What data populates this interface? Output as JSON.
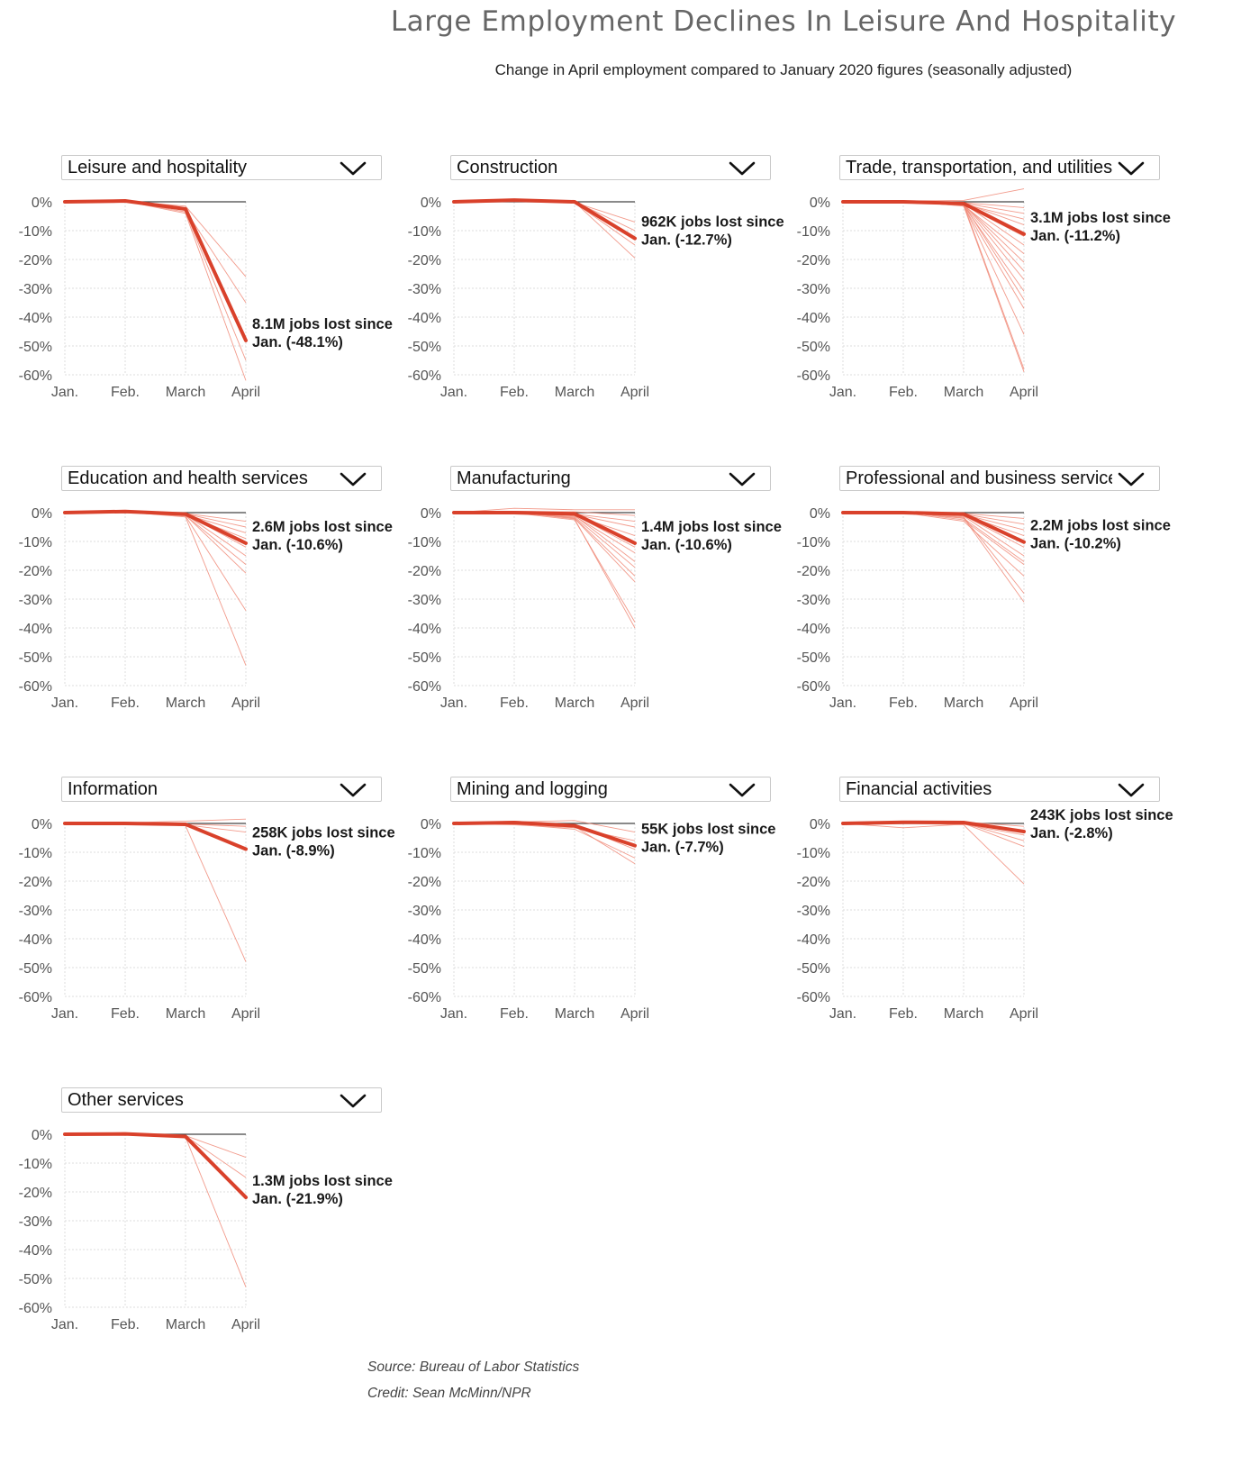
{
  "title": "Large Employment Declines In Leisure And Hospitality",
  "subtitle": "Change in April employment compared to January 2020 figures (seasonally adjusted)",
  "source": "Source: Bureau of Labor Statistics",
  "credit": "Credit: Sean McMinn/NPR",
  "colors": {
    "highlight": "#d9412b",
    "background_lines": "#f08a78",
    "zero_line": "#444444",
    "grid": "#dddddd"
  },
  "icons": {
    "dropdown": "chevron-down-icon"
  },
  "chart_data": [
    {
      "type": "line",
      "dropdown_label": "Leisure and hospitality",
      "x": [
        "Jan.",
        "Feb.",
        "March",
        "April"
      ],
      "y_ticks": [
        "0%",
        "-10%",
        "-20%",
        "-30%",
        "-40%",
        "-50%",
        "-60%"
      ],
      "ylim": [
        -60,
        0
      ],
      "highlight": {
        "values": [
          0,
          0.3,
          -2.5,
          -48.1
        ]
      },
      "annotation": [
        "8.1M jobs lost since",
        "Jan. (-48.1%)"
      ],
      "background_series": [
        [
          0,
          0.2,
          -1.5,
          -26
        ],
        [
          0,
          0.4,
          -3,
          -35
        ],
        [
          0,
          0.3,
          -2.8,
          -48
        ],
        [
          0,
          0.1,
          -3.5,
          -55
        ],
        [
          0,
          0.2,
          -4,
          -62
        ]
      ]
    },
    {
      "type": "line",
      "dropdown_label": "Construction",
      "x": [
        "Jan.",
        "Feb.",
        "March",
        "April"
      ],
      "y_ticks": [
        "0%",
        "-10%",
        "-20%",
        "-30%",
        "-40%",
        "-50%",
        "-60%"
      ],
      "ylim": [
        -60,
        0
      ],
      "highlight": {
        "values": [
          0,
          0.6,
          0,
          -12.7
        ]
      },
      "annotation": [
        "962K jobs lost since",
        "Jan. (-12.7%)"
      ],
      "background_series": [
        [
          0,
          0.4,
          -0.2,
          -7
        ],
        [
          0,
          0.5,
          0.1,
          -10
        ],
        [
          0,
          0.7,
          -0.3,
          -15
        ],
        [
          0,
          0.3,
          -0.1,
          -19.5
        ]
      ]
    },
    {
      "type": "line",
      "dropdown_label": "Trade, transportation, and utilities",
      "x": [
        "Jan.",
        "Feb.",
        "March",
        "April"
      ],
      "y_ticks": [
        "0%",
        "-10%",
        "-20%",
        "-30%",
        "-40%",
        "-50%",
        "-60%"
      ],
      "ylim": [
        -60,
        0
      ],
      "highlight": {
        "values": [
          0,
          0,
          -0.6,
          -11.2
        ]
      },
      "annotation": [
        "3.1M jobs lost since",
        "Jan. (-11.2%)"
      ],
      "background_series": [
        [
          0,
          0.3,
          0.5,
          4.5
        ],
        [
          0,
          0.2,
          -0.3,
          -2
        ],
        [
          0,
          -0.2,
          -0.5,
          -4
        ],
        [
          0,
          0.1,
          -0.8,
          -6
        ],
        [
          0,
          0.3,
          -0.4,
          -8
        ],
        [
          0,
          -0.3,
          -1,
          -12
        ],
        [
          0,
          0.2,
          -0.6,
          -15
        ],
        [
          0,
          0,
          -1.2,
          -18
        ],
        [
          0,
          0.1,
          -0.9,
          -21
        ],
        [
          0,
          -0.2,
          -0.7,
          -24
        ],
        [
          0,
          0.2,
          -1,
          -27
        ],
        [
          0,
          0,
          -1.3,
          -31
        ],
        [
          0,
          0.1,
          -0.8,
          -34
        ],
        [
          0,
          0.3,
          -1.5,
          -37
        ],
        [
          0,
          -0.1,
          -1.1,
          -46
        ],
        [
          0,
          0.2,
          -0.9,
          -58
        ],
        [
          0,
          0.1,
          -1.4,
          -59
        ]
      ]
    },
    {
      "type": "line",
      "dropdown_label": "Education and health services",
      "x": [
        "Jan.",
        "Feb.",
        "March",
        "April"
      ],
      "y_ticks": [
        "0%",
        "-10%",
        "-20%",
        "-30%",
        "-40%",
        "-50%",
        "-60%"
      ],
      "ylim": [
        -60,
        0
      ],
      "highlight": {
        "values": [
          0,
          0.4,
          -0.5,
          -10.6
        ]
      },
      "annotation": [
        "2.6M jobs lost since",
        "Jan. (-10.6%)"
      ],
      "background_series": [
        [
          0,
          0.2,
          -0.3,
          -3
        ],
        [
          0,
          0.3,
          -0.4,
          -5
        ],
        [
          0,
          0.2,
          -0.6,
          -7
        ],
        [
          0,
          0.4,
          -0.8,
          -9
        ],
        [
          0,
          0.1,
          -0.5,
          -12
        ],
        [
          0,
          0.3,
          -0.7,
          -15
        ],
        [
          0,
          0.2,
          -1,
          -18
        ],
        [
          0,
          0.3,
          -0.9,
          -21
        ],
        [
          0,
          0.1,
          -1.2,
          -34
        ],
        [
          0,
          0.2,
          -1.5,
          -53
        ]
      ]
    },
    {
      "type": "line",
      "dropdown_label": "Manufacturing",
      "x": [
        "Jan.",
        "Feb.",
        "March",
        "April"
      ],
      "y_ticks": [
        "0%",
        "-10%",
        "-20%",
        "-30%",
        "-40%",
        "-50%",
        "-60%"
      ],
      "ylim": [
        -60,
        0
      ],
      "highlight": {
        "values": [
          0,
          0,
          -0.4,
          -10.6
        ]
      },
      "annotation": [
        "1.4M jobs lost since",
        "Jan. (-10.6%)"
      ],
      "background_series": [
        [
          0,
          1.5,
          1,
          1
        ],
        [
          0,
          0.5,
          0.3,
          -1
        ],
        [
          0,
          -0.3,
          -0.5,
          -3
        ],
        [
          0,
          0.2,
          -0.6,
          -5
        ],
        [
          0,
          -0.5,
          -1,
          -8
        ],
        [
          0,
          0.3,
          -0.8,
          -12
        ],
        [
          0,
          0,
          -1.2,
          -14
        ],
        [
          0,
          0.4,
          -1,
          -17
        ],
        [
          0,
          -0.2,
          -1.5,
          -19
        ],
        [
          0,
          0.1,
          -1.8,
          -22
        ],
        [
          0,
          0.3,
          -2,
          -24
        ],
        [
          0,
          -0.1,
          -2.5,
          -38
        ],
        [
          0,
          0.2,
          -2.2,
          -40
        ]
      ]
    },
    {
      "type": "line",
      "dropdown_label": "Professional and business services",
      "x": [
        "Jan.",
        "Feb.",
        "March",
        "April"
      ],
      "y_ticks": [
        "0%",
        "-10%",
        "-20%",
        "-30%",
        "-40%",
        "-50%",
        "-60%"
      ],
      "ylim": [
        -60,
        0
      ],
      "highlight": {
        "values": [
          0,
          0,
          -0.5,
          -10.2
        ]
      },
      "annotation": [
        "2.2M jobs lost since",
        "Jan. (-10.2%)"
      ],
      "background_series": [
        [
          0,
          0.2,
          -0.3,
          -2
        ],
        [
          0,
          0.1,
          -0.5,
          -4
        ],
        [
          0,
          0.3,
          -0.6,
          -6
        ],
        [
          0,
          0.2,
          -0.8,
          -8
        ],
        [
          0,
          0,
          -1,
          -12
        ],
        [
          0,
          0.2,
          -1.2,
          -15
        ],
        [
          0,
          0.1,
          -2,
          -17
        ],
        [
          0,
          0.3,
          -2.5,
          -18
        ],
        [
          0,
          0,
          -3,
          -22
        ],
        [
          0,
          0.2,
          -1.5,
          -28
        ],
        [
          0,
          0.1,
          -1.8,
          -31
        ]
      ]
    },
    {
      "type": "line",
      "dropdown_label": "Information",
      "x": [
        "Jan.",
        "Feb.",
        "March",
        "April"
      ],
      "y_ticks": [
        "0%",
        "-10%",
        "-20%",
        "-30%",
        "-40%",
        "-50%",
        "-60%"
      ],
      "ylim": [
        -60,
        0
      ],
      "highlight": {
        "values": [
          0,
          0,
          -0.3,
          -8.9
        ]
      },
      "annotation": [
        "258K jobs lost since",
        "Jan. (-8.9%)"
      ],
      "background_series": [
        [
          0,
          0.2,
          0.8,
          1.5
        ],
        [
          0,
          0.1,
          -0.2,
          -1
        ],
        [
          0,
          -0.1,
          -0.5,
          -3
        ],
        [
          0,
          0.1,
          -0.8,
          -48
        ]
      ]
    },
    {
      "type": "line",
      "dropdown_label": "Mining and logging",
      "x": [
        "Jan.",
        "Feb.",
        "March",
        "April"
      ],
      "y_ticks": [
        "0%",
        "-10%",
        "-20%",
        "-30%",
        "-40%",
        "-50%",
        "-60%"
      ],
      "ylim": [
        -60,
        0
      ],
      "highlight": {
        "values": [
          0,
          0.3,
          -0.8,
          -7.7
        ]
      },
      "annotation": [
        "55K jobs lost since",
        "Jan. (-7.7%)"
      ],
      "background_series": [
        [
          0,
          0.5,
          1,
          -3
        ],
        [
          0,
          -0.5,
          -1.5,
          -6
        ],
        [
          0,
          0.8,
          -0.5,
          -9
        ],
        [
          0,
          -0.3,
          -2,
          -12
        ],
        [
          0,
          0.2,
          -1,
          -14
        ]
      ]
    },
    {
      "type": "line",
      "dropdown_label": "Financial activities",
      "x": [
        "Jan.",
        "Feb.",
        "March",
        "April"
      ],
      "y_ticks": [
        "0%",
        "-10%",
        "-20%",
        "-30%",
        "-40%",
        "-50%",
        "-60%"
      ],
      "ylim": [
        -60,
        0
      ],
      "highlight": {
        "values": [
          0,
          0.4,
          0.3,
          -2.8
        ]
      },
      "annotation": [
        "243K jobs lost since",
        "Jan. (-2.8%)"
      ],
      "background_series": [
        [
          0,
          0.3,
          0.5,
          -1
        ],
        [
          0,
          -1.5,
          -0.3,
          -4
        ],
        [
          0,
          0.2,
          0.1,
          -6
        ],
        [
          0,
          0.3,
          0,
          -8
        ],
        [
          0,
          0.1,
          -0.5,
          -21
        ]
      ]
    },
    {
      "type": "line",
      "dropdown_label": "Other services",
      "x": [
        "Jan.",
        "Feb.",
        "March",
        "April"
      ],
      "y_ticks": [
        "0%",
        "-10%",
        "-20%",
        "-30%",
        "-40%",
        "-50%",
        "-60%"
      ],
      "ylim": [
        -60,
        0
      ],
      "highlight": {
        "values": [
          0,
          0.1,
          -0.8,
          -21.9
        ]
      },
      "annotation": [
        "1.3M jobs lost since",
        "Jan. (-21.9%)"
      ],
      "background_series": [
        [
          0,
          0.1,
          -0.5,
          -8
        ],
        [
          0,
          0.2,
          -0.6,
          -15
        ],
        [
          0,
          0,
          -1,
          -53
        ]
      ]
    }
  ]
}
